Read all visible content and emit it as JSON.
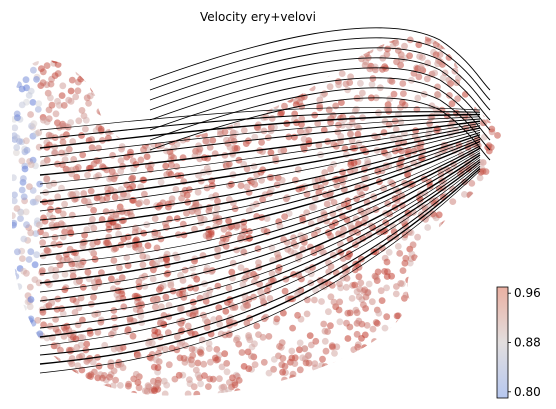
{
  "chart_data": {
    "type": "scatter",
    "subtype": "embedding-velocity-stream",
    "title": "Velocity ery+velovi",
    "xlabel": "",
    "ylabel": "",
    "axes_visible": false,
    "grid": false,
    "stream_arrows": "black streamlines, flow left to right, converging to the right tip",
    "colorbar": {
      "colormap": "coolwarm",
      "range": [
        0.79,
        0.97
      ],
      "ticks": [
        0.8,
        0.88,
        0.96
      ],
      "tick_labels": [
        "0.80",
        "0.88",
        "0.96"
      ],
      "placement": "bottom-right"
    },
    "point_summary": "dense cloud of cells forming a fan shape; upper-right lobe and core mostly values near 0.95-0.97 (red), left edge column and scattered cells near 0.80-0.88 (blue/pale)",
    "colors": {
      "high": "#c0392b",
      "mid": "#dddcdc",
      "low": "#4b6bd6",
      "arrow": "#000000"
    }
  }
}
